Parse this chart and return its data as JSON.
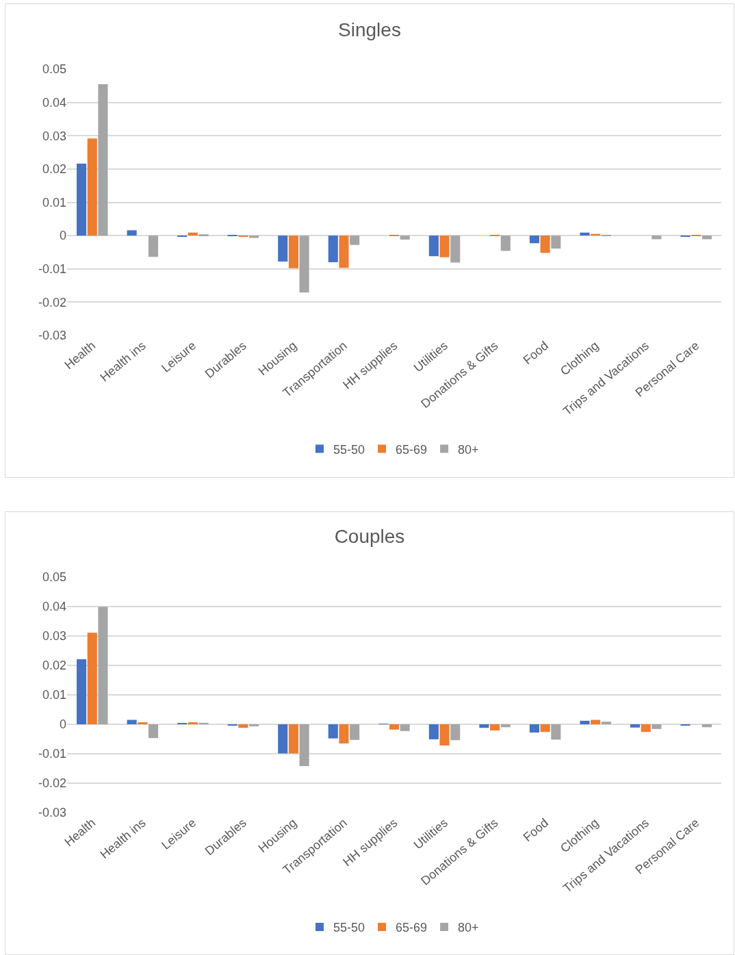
{
  "chart_data": [
    {
      "type": "bar",
      "title": "Singles",
      "categories": [
        "Health",
        "Health ins",
        "Leisure",
        "Durables",
        "Housing",
        "Transportation",
        "HH supplies",
        "Utilities",
        "Donations & Gifts",
        "Food",
        "Clothing",
        "Trips and Vacations",
        "Personal Care"
      ],
      "series": [
        {
          "name": "55-50",
          "color": "#4472c4",
          "values": [
            0.0216,
            0.0016,
            -0.0003,
            0.0001,
            -0.0078,
            -0.008,
            0,
            -0.0062,
            0,
            -0.0023,
            0.0009,
            0,
            -0.0002
          ]
        },
        {
          "name": "65-69",
          "color": "#ed7d31",
          "values": [
            0.0292,
            0,
            0.0009,
            -0.0004,
            -0.0098,
            -0.0097,
            0.0002,
            -0.0065,
            0.0001,
            -0.0052,
            0.0005,
            0,
            0.0002
          ]
        },
        {
          "name": "80+",
          "color": "#a5a5a5",
          "values": [
            0.0455,
            -0.0064,
            0.0004,
            -0.0007,
            -0.0171,
            -0.0028,
            -0.0012,
            -0.0081,
            -0.0046,
            -0.0039,
            0.0002,
            -0.0011,
            -0.0011
          ]
        }
      ],
      "ylim": [
        -0.03,
        0.05
      ],
      "yticks": [
        -0.03,
        -0.02,
        -0.01,
        0,
        0.01,
        0.02,
        0.03,
        0.04,
        0.05
      ],
      "grid": "y",
      "legend": "bottom"
    },
    {
      "type": "bar",
      "title": "Couples",
      "categories": [
        "Health",
        "Health ins",
        "Leisure",
        "Durables",
        "Housing",
        "Transportation",
        "HH supplies",
        "Utilities",
        "Donations & Gifts",
        "Food",
        "Clothing",
        "Trips and Vacations",
        "Personal Care"
      ],
      "series": [
        {
          "name": "55-50",
          "color": "#4472c4",
          "values": [
            0.0221,
            0.0015,
            0.0003,
            -0.0003,
            -0.0099,
            -0.0048,
            0.0001,
            -0.0051,
            -0.0012,
            -0.0028,
            0.0012,
            -0.0011,
            -0.0003
          ]
        },
        {
          "name": "65-69",
          "color": "#ed7d31",
          "values": [
            0.0311,
            0.0007,
            0.0007,
            -0.0012,
            -0.0099,
            -0.0065,
            -0.0018,
            -0.0072,
            -0.0021,
            -0.0026,
            0.0015,
            -0.0026,
            0
          ]
        },
        {
          "name": "80+",
          "color": "#a5a5a5",
          "values": [
            0.0399,
            -0.0047,
            0.0005,
            -0.0007,
            -0.0142,
            -0.0053,
            -0.0023,
            -0.0054,
            -0.001,
            -0.0052,
            0.0009,
            -0.0016,
            -0.001
          ]
        }
      ],
      "ylim": [
        -0.03,
        0.05
      ],
      "yticks": [
        -0.03,
        -0.02,
        -0.01,
        0,
        0.01,
        0.02,
        0.03,
        0.04,
        0.05
      ],
      "grid": "y",
      "legend": "bottom"
    }
  ]
}
